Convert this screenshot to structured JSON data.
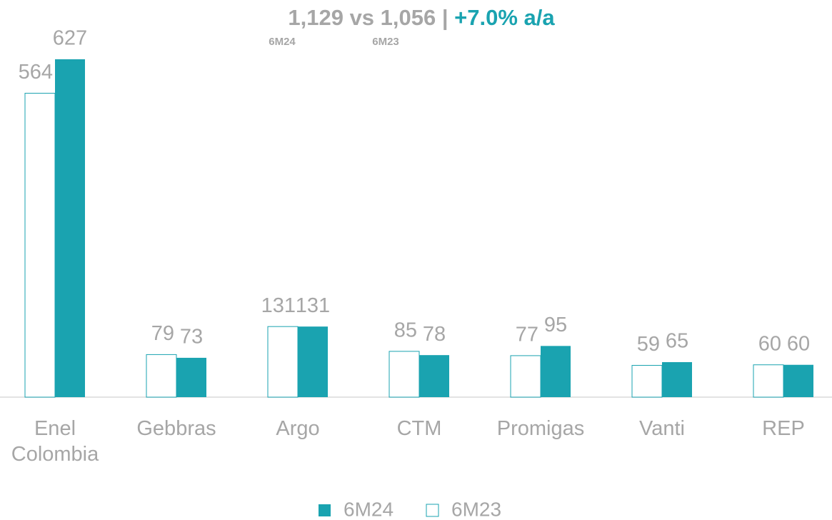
{
  "chart_data": {
    "type": "bar",
    "title": "1,129 vs 1,056 |",
    "title_highlight": "+7.0% a/a",
    "title_sublabels": [
      "6M24",
      "6M23"
    ],
    "categories": [
      "Enel Colombia",
      "Gebbras",
      "Argo",
      "CTM",
      "Promigas",
      "Vanti",
      "REP"
    ],
    "series": [
      {
        "name": "6M24",
        "color": "#1aa3b0",
        "values": [
          627,
          73,
          131,
          78,
          95,
          65,
          60
        ]
      },
      {
        "name": "6M23",
        "color": "#ffffff",
        "values": [
          564,
          79,
          131,
          85,
          77,
          59,
          60
        ]
      }
    ],
    "legend": "bottom"
  }
}
